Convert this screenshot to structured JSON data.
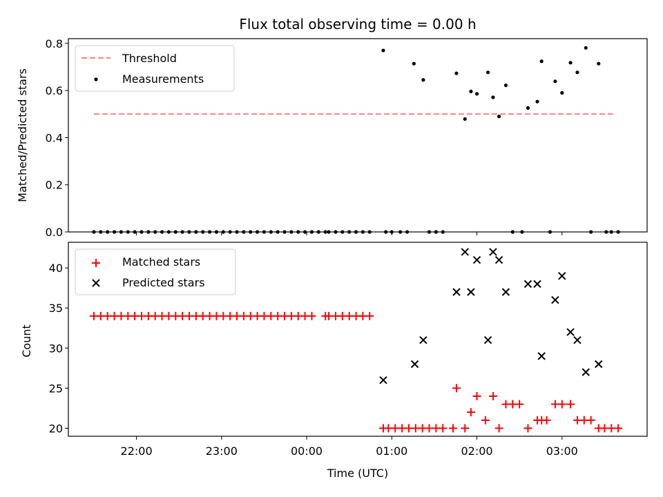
{
  "title": "Flux total observing time = 0.00 h",
  "x_axis": {
    "label": "Time (UTC)",
    "ticks": [
      {
        "hour": 22,
        "label": "22:00"
      },
      {
        "hour": 23,
        "label": "23:00"
      },
      {
        "hour": 24,
        "label": "00:00"
      },
      {
        "hour": 25,
        "label": "01:00"
      },
      {
        "hour": 26,
        "label": "02:00"
      },
      {
        "hour": 27,
        "label": "03:00"
      }
    ]
  },
  "chart_data": [
    {
      "type": "scatter",
      "name": "top",
      "xlim_hours": [
        21.2,
        28.0
      ],
      "ylim": [
        0,
        0.82
      ],
      "ylabel": "Matched/Predicted stars",
      "yticks": [
        0.0,
        0.2,
        0.4,
        0.6,
        0.8
      ],
      "ytick_labels": [
        "0.0",
        "0.2",
        "0.4",
        "0.6",
        "0.8"
      ],
      "grid": false,
      "legend": "top-left",
      "threshold": {
        "name": "Threshold",
        "value": 0.5,
        "x_start_hours": 21.5,
        "x_end_hours": 27.6,
        "color": "#ff7f7f"
      },
      "series": [
        {
          "name": "Measurements",
          "color": "#000000",
          "marker": "dot",
          "x_hours": [
            21.5,
            21.58,
            21.66,
            21.74,
            21.82,
            21.9,
            21.98,
            22.06,
            22.14,
            22.22,
            22.3,
            22.38,
            22.46,
            22.54,
            22.62,
            22.7,
            22.78,
            22.86,
            22.94,
            23.02,
            23.1,
            23.18,
            23.26,
            23.34,
            23.42,
            23.5,
            23.58,
            23.66,
            23.74,
            23.82,
            23.9,
            23.98,
            24.06,
            24.14,
            24.22,
            24.26,
            24.34,
            24.42,
            24.5,
            24.58,
            24.66,
            24.74,
            24.9,
            24.93,
            25.0,
            25.1,
            25.18,
            25.26,
            25.37,
            25.44,
            25.52,
            25.6,
            25.76,
            25.86,
            25.93,
            26.0,
            26.13,
            26.19,
            26.26,
            26.34,
            26.42,
            26.53,
            26.6,
            26.71,
            26.76,
            26.86,
            26.92,
            27.0,
            27.1,
            27.18,
            27.28,
            27.34,
            27.43,
            27.52,
            27.58,
            27.66
          ],
          "y": [
            0,
            0,
            0,
            0,
            0,
            0,
            0,
            0,
            0,
            0,
            0,
            0,
            0,
            0,
            0,
            0,
            0,
            0,
            0,
            0,
            0,
            0,
            0,
            0,
            0,
            0,
            0,
            0,
            0,
            0,
            0,
            0,
            0,
            0,
            0,
            0,
            0,
            0,
            0,
            0,
            0,
            0,
            0.77,
            0,
            0,
            0,
            0,
            0.714,
            0.645,
            0,
            0,
            0,
            0.673,
            0.479,
            0.596,
            0.586,
            0.677,
            0.571,
            0.49,
            0.622,
            0,
            0,
            0.526,
            0.553,
            0.724,
            0,
            0.639,
            0.59,
            0.718,
            0.677,
            0.781,
            0,
            0.714,
            0,
            0,
            0
          ]
        }
      ]
    },
    {
      "type": "scatter",
      "name": "bottom",
      "xlim_hours": [
        21.2,
        28.0
      ],
      "ylim": [
        19.0,
        43.2
      ],
      "ylabel": "Count",
      "yticks": [
        20,
        25,
        30,
        35,
        40
      ],
      "ytick_labels": [
        "20",
        "25",
        "30",
        "35",
        "40"
      ],
      "grid": false,
      "legend": "top-left",
      "series": [
        {
          "name": "Matched stars",
          "color": "#ff0000",
          "marker": "plus",
          "x_hours": [
            21.5,
            21.58,
            21.66,
            21.74,
            21.82,
            21.9,
            21.98,
            22.06,
            22.14,
            22.22,
            22.3,
            22.38,
            22.46,
            22.54,
            22.62,
            22.7,
            22.78,
            22.86,
            22.94,
            23.02,
            23.1,
            23.18,
            23.26,
            23.34,
            23.42,
            23.5,
            23.58,
            23.66,
            23.74,
            23.82,
            23.9,
            23.98,
            24.06,
            24.22,
            24.26,
            24.34,
            24.42,
            24.5,
            24.58,
            24.66,
            24.74,
            24.9,
            24.96,
            25.04,
            25.12,
            25.2,
            25.28,
            25.36,
            25.44,
            25.52,
            25.6,
            25.72,
            25.76,
            25.86,
            25.93,
            26.0,
            26.1,
            26.19,
            26.26,
            26.34,
            26.42,
            26.5,
            26.6,
            26.71,
            26.76,
            26.82,
            26.92,
            27.0,
            27.1,
            27.18,
            27.26,
            27.34,
            27.43,
            27.5,
            27.58,
            27.66
          ],
          "y": [
            34,
            34,
            34,
            34,
            34,
            34,
            34,
            34,
            34,
            34,
            34,
            34,
            34,
            34,
            34,
            34,
            34,
            34,
            34,
            34,
            34,
            34,
            34,
            34,
            34,
            34,
            34,
            34,
            34,
            34,
            34,
            34,
            34,
            34,
            34,
            34,
            34,
            34,
            34,
            34,
            34,
            20,
            20,
            20,
            20,
            20,
            20,
            20,
            20,
            20,
            20,
            20,
            25,
            20,
            22,
            24,
            21,
            24,
            20,
            23,
            23,
            23,
            20,
            21,
            21,
            21,
            23,
            23,
            23,
            21,
            21,
            21,
            20,
            20,
            20,
            20
          ]
        },
        {
          "name": "Predicted stars",
          "color": "#000000",
          "marker": "x",
          "x_hours": [
            24.9,
            25.27,
            25.37,
            25.76,
            25.86,
            25.93,
            26.0,
            26.13,
            26.19,
            26.26,
            26.34,
            26.6,
            26.71,
            26.76,
            26.92,
            27.0,
            27.1,
            27.18,
            27.28,
            27.43
          ],
          "y": [
            26,
            28,
            31,
            37,
            42,
            37,
            41,
            31,
            42,
            41,
            37,
            38,
            38,
            29,
            36,
            39,
            32,
            31,
            27,
            28
          ]
        }
      ]
    }
  ]
}
